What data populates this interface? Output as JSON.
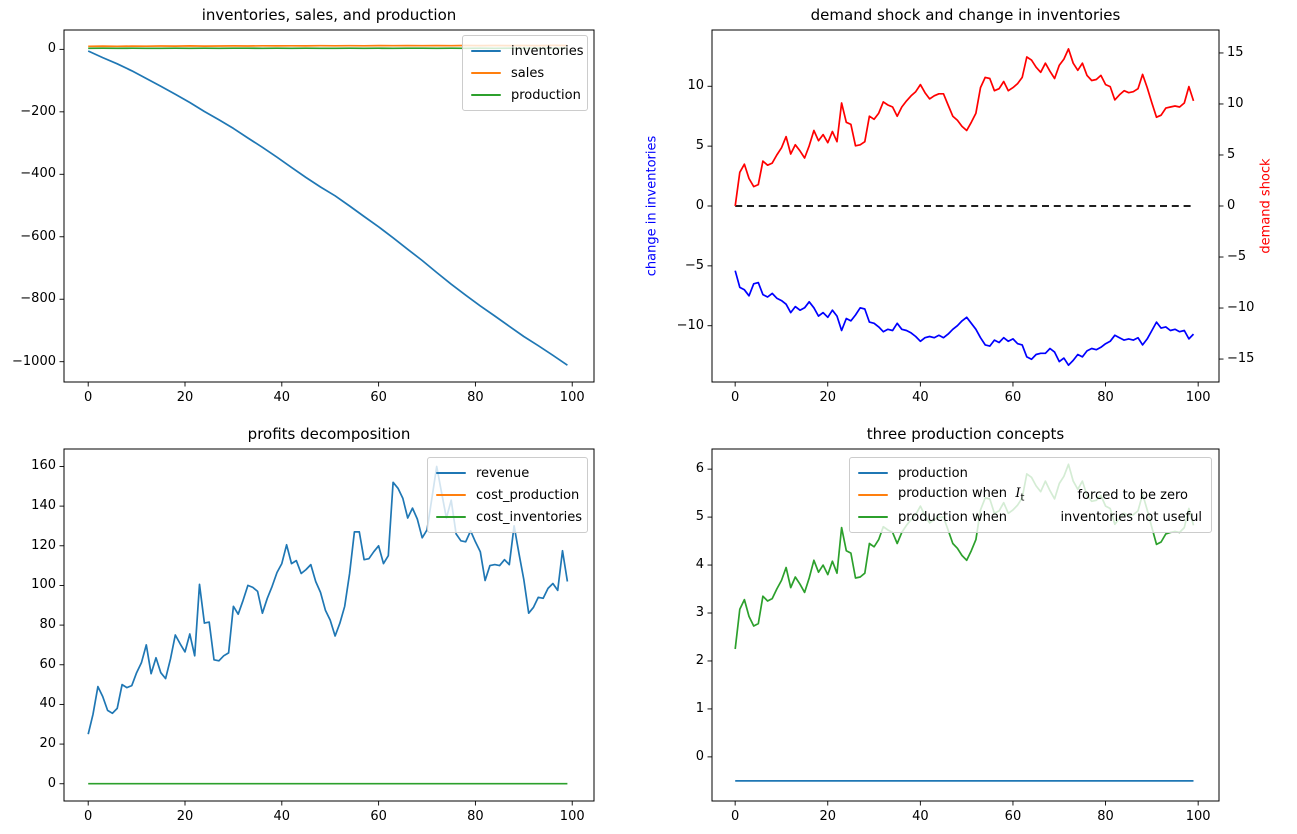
{
  "figure": {
    "background": "#ffffff"
  },
  "chart_data": [
    {
      "type": "line",
      "title": "inventories, sales, and production",
      "xlim": [
        -5,
        104.5
      ],
      "x_ticks": [
        {
          "v": 0,
          "label": "0"
        },
        {
          "v": 20,
          "label": "20"
        },
        {
          "v": 40,
          "label": "40"
        },
        {
          "v": 60,
          "label": "60"
        },
        {
          "v": 80,
          "label": "80"
        },
        {
          "v": 100,
          "label": "100"
        }
      ],
      "axes": {
        "left": {
          "ylim": [
            -1065,
            62
          ],
          "ticks": [
            {
              "v": 0,
              "label": "0"
            },
            {
              "v": -200,
              "label": "−200"
            },
            {
              "v": -400,
              "label": "−400"
            },
            {
              "v": -600,
              "label": "−600"
            },
            {
              "v": -800,
              "label": "−800"
            },
            {
              "v": -1000,
              "label": "−1000"
            }
          ]
        }
      },
      "legend": {
        "loc": "upper right",
        "entries": [
          {
            "label": "inventories",
            "color": "#1f77b4"
          },
          {
            "label": "sales",
            "color": "#ff7f0e"
          },
          {
            "label": "production",
            "color": "#2ca02c"
          }
        ]
      },
      "series": [
        {
          "name": "inventories",
          "color": "#1f77b4",
          "x": [
            0,
            3,
            6,
            9,
            12,
            15,
            18,
            21,
            24,
            27,
            30,
            33,
            36,
            39,
            42,
            45,
            48,
            51,
            54,
            57,
            60,
            63,
            66,
            69,
            72,
            75,
            78,
            81,
            84,
            87,
            90,
            93,
            96,
            99
          ],
          "values": [
            -5.3,
            -26.3,
            -46.3,
            -68.6,
            -93.2,
            -118.4,
            -143.7,
            -170.2,
            -198.8,
            -225.6,
            -253.2,
            -283.7,
            -313.7,
            -345.1,
            -377.8,
            -410.2,
            -440.7,
            -469.0,
            -501.4,
            -535.2,
            -568.0,
            -603.2,
            -640.2,
            -676.0,
            -714.4,
            -751.8,
            -787.2,
            -821.3,
            -853.8,
            -886.6,
            -919.2,
            -948.8,
            -979.5,
            -1011.2
          ]
        },
        {
          "name": "sales",
          "color": "#ff7f0e",
          "x": [
            0,
            3,
            6,
            9,
            12,
            15,
            18,
            21,
            24,
            27,
            30,
            33,
            36,
            39,
            42,
            45,
            48,
            51,
            54,
            57,
            60,
            63,
            66,
            69,
            72,
            75,
            78,
            81,
            84,
            87,
            90,
            93,
            96,
            99
          ],
          "values": [
            9.8,
            10.3,
            9.9,
            10.6,
            10.2,
            10.8,
            10.4,
            11.0,
            10.6,
            10.9,
            11.2,
            10.8,
            11.3,
            11.0,
            11.5,
            11.1,
            11.6,
            11.3,
            11.8,
            11.4,
            11.9,
            11.6,
            12.0,
            11.7,
            12.2,
            11.8,
            12.3,
            12.0,
            12.4,
            12.1,
            12.5,
            12.2,
            12.6,
            12.3
          ]
        },
        {
          "name": "production",
          "color": "#2ca02c",
          "x": [
            0,
            3,
            6,
            9,
            12,
            15,
            18,
            21,
            24,
            27,
            30,
            33,
            36,
            39,
            42,
            45,
            48,
            51,
            54,
            57,
            60,
            63,
            66,
            69,
            72,
            75,
            78,
            81,
            84,
            87,
            90,
            93,
            96,
            99
          ],
          "values": [
            3.5,
            3.6,
            3.5,
            3.6,
            3.5,
            3.5,
            3.6,
            3.5,
            3.6,
            3.5,
            3.6,
            3.6,
            3.5,
            3.6,
            3.5,
            3.6,
            3.5,
            3.5,
            3.6,
            3.5,
            3.6,
            3.5,
            3.6,
            3.6,
            3.5,
            3.6,
            3.5,
            3.6,
            3.5,
            3.6,
            3.5,
            3.6,
            3.5,
            3.6
          ]
        }
      ]
    },
    {
      "type": "line",
      "title": "demand shock and change in inventories",
      "xlim": [
        -5,
        104.5
      ],
      "x_ticks": [
        {
          "v": 0,
          "label": "0"
        },
        {
          "v": 20,
          "label": "20"
        },
        {
          "v": 40,
          "label": "40"
        },
        {
          "v": 60,
          "label": "60"
        },
        {
          "v": 80,
          "label": "80"
        },
        {
          "v": 100,
          "label": "100"
        }
      ],
      "axes": {
        "left": {
          "label": "change in inventories",
          "label_color": "#0000ff",
          "ylim": [
            -14.7,
            14.7
          ],
          "ticks": [
            {
              "v": 10,
              "label": "10"
            },
            {
              "v": 5,
              "label": "5"
            },
            {
              "v": 0,
              "label": "0"
            },
            {
              "v": -5,
              "label": "−5"
            },
            {
              "v": -10,
              "label": "−10"
            }
          ]
        },
        "right": {
          "label": "demand shock",
          "label_color": "#ff0000",
          "ylim": [
            -17.25,
            17.25
          ],
          "ticks": [
            {
              "v": 15,
              "label": "15"
            },
            {
              "v": 10,
              "label": "10"
            },
            {
              "v": 5,
              "label": "5"
            },
            {
              "v": 0,
              "label": "0"
            },
            {
              "v": -5,
              "label": "−5"
            },
            {
              "v": -10,
              "label": "−10"
            },
            {
              "v": -15,
              "label": "−15"
            }
          ]
        }
      },
      "series": [
        {
          "name": "change in inventories",
          "color": "#0000ff",
          "axis": "left",
          "values": [
            -5.4,
            -6.8,
            -7.0,
            -7.5,
            -6.5,
            -6.4,
            -7.4,
            -7.6,
            -7.3,
            -7.7,
            -7.9,
            -8.2,
            -8.9,
            -8.4,
            -8.7,
            -8.5,
            -8.0,
            -8.5,
            -9.2,
            -8.9,
            -9.3,
            -8.7,
            -9.2,
            -10.4,
            -9.4,
            -9.6,
            -9.1,
            -8.5,
            -8.6,
            -9.7,
            -9.8,
            -10.1,
            -10.5,
            -10.3,
            -10.4,
            -9.8,
            -10.3,
            -10.4,
            -10.6,
            -10.9,
            -11.3,
            -11.0,
            -10.9,
            -11.0,
            -10.8,
            -11.0,
            -10.7,
            -10.3,
            -10.0,
            -9.6,
            -9.3,
            -9.8,
            -10.3,
            -11.0,
            -11.6,
            -11.7,
            -11.2,
            -11.4,
            -11.0,
            -11.3,
            -11.1,
            -11.5,
            -11.6,
            -12.6,
            -12.8,
            -12.4,
            -12.3,
            -12.3,
            -11.9,
            -12.2,
            -13.0,
            -12.7,
            -13.3,
            -12.9,
            -12.4,
            -12.6,
            -12.1,
            -11.9,
            -12.0,
            -11.8,
            -11.5,
            -11.3,
            -10.8,
            -11.0,
            -11.2,
            -11.1,
            -11.2,
            -11.0,
            -11.6,
            -11.1,
            -10.4,
            -9.7,
            -10.2,
            -10.1,
            -10.4,
            -10.3,
            -10.5,
            -10.4,
            -11.1,
            -10.7
          ]
        },
        {
          "name": "zero line",
          "color": "#000000",
          "axis": "left",
          "style": "dashed",
          "x": [
            0,
            99
          ],
          "values": [
            0,
            0
          ]
        },
        {
          "name": "demand shock",
          "color": "#ff0000",
          "axis": "right",
          "values": [
            0,
            3.3,
            4.1,
            2.7,
            1.9,
            2.1,
            4.4,
            4.0,
            4.2,
            5.0,
            5.7,
            6.8,
            5.1,
            6.0,
            5.4,
            4.7,
            5.9,
            7.4,
            6.4,
            7.0,
            6.2,
            7.3,
            6.3,
            10.1,
            8.2,
            8.0,
            5.9,
            6.0,
            6.3,
            8.8,
            8.5,
            9.1,
            10.2,
            9.9,
            9.7,
            8.8,
            9.7,
            10.3,
            10.8,
            11.2,
            11.9,
            11.1,
            10.5,
            10.8,
            11.0,
            11.0,
            9.9,
            8.8,
            8.4,
            7.8,
            7.4,
            8.2,
            9.1,
            11.6,
            12.6,
            12.5,
            11.3,
            11.5,
            12.2,
            11.3,
            11.6,
            12.0,
            12.6,
            14.6,
            14.3,
            13.6,
            13.1,
            14.0,
            13.2,
            12.5,
            13.8,
            14.4,
            15.4,
            14.0,
            13.3,
            14.0,
            12.8,
            12.3,
            12.4,
            12.8,
            11.9,
            11.7,
            10.4,
            10.9,
            11.3,
            11.1,
            11.2,
            11.5,
            12.9,
            11.6,
            10.1,
            8.7,
            8.9,
            9.6,
            9.7,
            9.8,
            9.7,
            10.1,
            11.7,
            10.3
          ]
        }
      ]
    },
    {
      "type": "line",
      "title": "profits decomposition",
      "xlim": [
        -5,
        104.5
      ],
      "x_ticks": [
        {
          "v": 0,
          "label": "0"
        },
        {
          "v": 20,
          "label": "20"
        },
        {
          "v": 40,
          "label": "40"
        },
        {
          "v": 60,
          "label": "60"
        },
        {
          "v": 80,
          "label": "80"
        },
        {
          "v": 100,
          "label": "100"
        }
      ],
      "axes": {
        "left": {
          "ylim": [
            -8.7,
            168.8
          ],
          "ticks": [
            {
              "v": 0,
              "label": "0"
            },
            {
              "v": 20,
              "label": "20"
            },
            {
              "v": 40,
              "label": "40"
            },
            {
              "v": 60,
              "label": "60"
            },
            {
              "v": 80,
              "label": "80"
            },
            {
              "v": 100,
              "label": "100"
            },
            {
              "v": 120,
              "label": "120"
            },
            {
              "v": 140,
              "label": "140"
            },
            {
              "v": 160,
              "label": "160"
            }
          ]
        }
      },
      "legend": {
        "loc": "upper right",
        "entries": [
          {
            "label": "revenue",
            "color": "#1f77b4"
          },
          {
            "label": "cost_production",
            "color": "#ff7f0e"
          },
          {
            "label": "cost_inventories",
            "color": "#2ca02c"
          }
        ]
      },
      "series": [
        {
          "name": "revenue",
          "color": "#1f77b4",
          "values": [
            25,
            35,
            49,
            44,
            37,
            35.5,
            38,
            50,
            48.5,
            49.5,
            56,
            61,
            70,
            55.5,
            63.5,
            56,
            53,
            63,
            75,
            70.5,
            66.5,
            75.5,
            64.5,
            100.5,
            81,
            81.5,
            62.5,
            62,
            64.5,
            66,
            89.5,
            85.5,
            92.5,
            100,
            99,
            97,
            86,
            93.5,
            99.5,
            106.5,
            111,
            120.5,
            111,
            112.5,
            106,
            108,
            110.5,
            102,
            96.5,
            87.5,
            82.5,
            74.5,
            81,
            89.5,
            106,
            127,
            127,
            113,
            113.5,
            117,
            120,
            111,
            115,
            152,
            149,
            144,
            134,
            139,
            133.5,
            124,
            128,
            144,
            160,
            147,
            134,
            143,
            126,
            122.5,
            122,
            127.5,
            122,
            117,
            102.5,
            110,
            110.5,
            110,
            113,
            110.5,
            130,
            116,
            103,
            86,
            89,
            94,
            93.5,
            98.5,
            101,
            97.5,
            117.5,
            102
          ]
        },
        {
          "name": "cost_production",
          "color": "#ff7f0e",
          "note": "flat at 0, hidden beneath cost_inventories line",
          "values": []
        },
        {
          "name": "cost_inventories",
          "color": "#2ca02c",
          "x": [
            0,
            99
          ],
          "values": [
            0,
            0
          ]
        }
      ]
    },
    {
      "type": "line",
      "title": "three production concepts",
      "xlim": [
        -5,
        104.5
      ],
      "x_ticks": [
        {
          "v": 0,
          "label": "0"
        },
        {
          "v": 20,
          "label": "20"
        },
        {
          "v": 40,
          "label": "40"
        },
        {
          "v": 60,
          "label": "60"
        },
        {
          "v": 80,
          "label": "80"
        },
        {
          "v": 100,
          "label": "100"
        }
      ],
      "axes": {
        "left": {
          "ylim": [
            -0.92,
            6.42
          ],
          "ticks": [
            {
              "v": 6,
              "label": "6"
            },
            {
              "v": 5,
              "label": "5"
            },
            {
              "v": 4,
              "label": "4"
            },
            {
              "v": 3,
              "label": "3"
            },
            {
              "v": 2,
              "label": "2"
            },
            {
              "v": 1,
              "label": "1"
            },
            {
              "v": 0,
              "label": "0"
            }
          ]
        }
      },
      "legend": {
        "loc": "upper right",
        "entries": [
          {
            "label": "production",
            "color": "#1f77b4"
          },
          {
            "label": "production when  $I_t$",
            "label2": "forced to be zero",
            "color": "#ff7f0e"
          },
          {
            "label": "production when",
            "label2": "inventories not useful",
            "color": "#2ca02c"
          }
        ]
      },
      "series": [
        {
          "name": "production",
          "color": "#1f77b4",
          "x": [
            0,
            99
          ],
          "values": [
            -0.5,
            -0.5
          ]
        },
        {
          "name": "production when I_t forced to be zero",
          "color": "#ff7f0e",
          "note": "hidden beneath green line",
          "values": []
        },
        {
          "name": "production when inventories not useful",
          "color": "#2ca02c",
          "values": [
            2.25,
            3.08,
            3.28,
            2.93,
            2.73,
            2.78,
            3.35,
            3.25,
            3.3,
            3.5,
            3.68,
            3.95,
            3.53,
            3.75,
            3.6,
            3.43,
            3.73,
            4.1,
            3.85,
            4.0,
            3.8,
            4.08,
            3.83,
            4.78,
            4.3,
            4.25,
            3.73,
            3.75,
            3.83,
            4.45,
            4.38,
            4.53,
            4.8,
            4.73,
            4.68,
            4.45,
            4.68,
            4.83,
            4.95,
            5.05,
            5.23,
            5.03,
            4.88,
            4.95,
            5.0,
            5.0,
            4.73,
            4.45,
            4.35,
            4.2,
            4.1,
            4.3,
            4.53,
            5.15,
            5.4,
            5.38,
            5.08,
            5.13,
            5.3,
            5.08,
            5.15,
            5.25,
            5.4,
            5.9,
            5.83,
            5.65,
            5.53,
            5.75,
            5.55,
            5.38,
            5.7,
            5.85,
            6.1,
            5.75,
            5.58,
            5.75,
            5.45,
            5.33,
            5.35,
            5.45,
            5.23,
            5.18,
            4.85,
            4.98,
            5.08,
            5.03,
            5.05,
            5.13,
            5.48,
            5.15,
            4.78,
            4.43,
            4.48,
            4.65,
            4.68,
            4.7,
            4.68,
            4.78,
            5.18,
            4.83
          ]
        }
      ]
    }
  ]
}
